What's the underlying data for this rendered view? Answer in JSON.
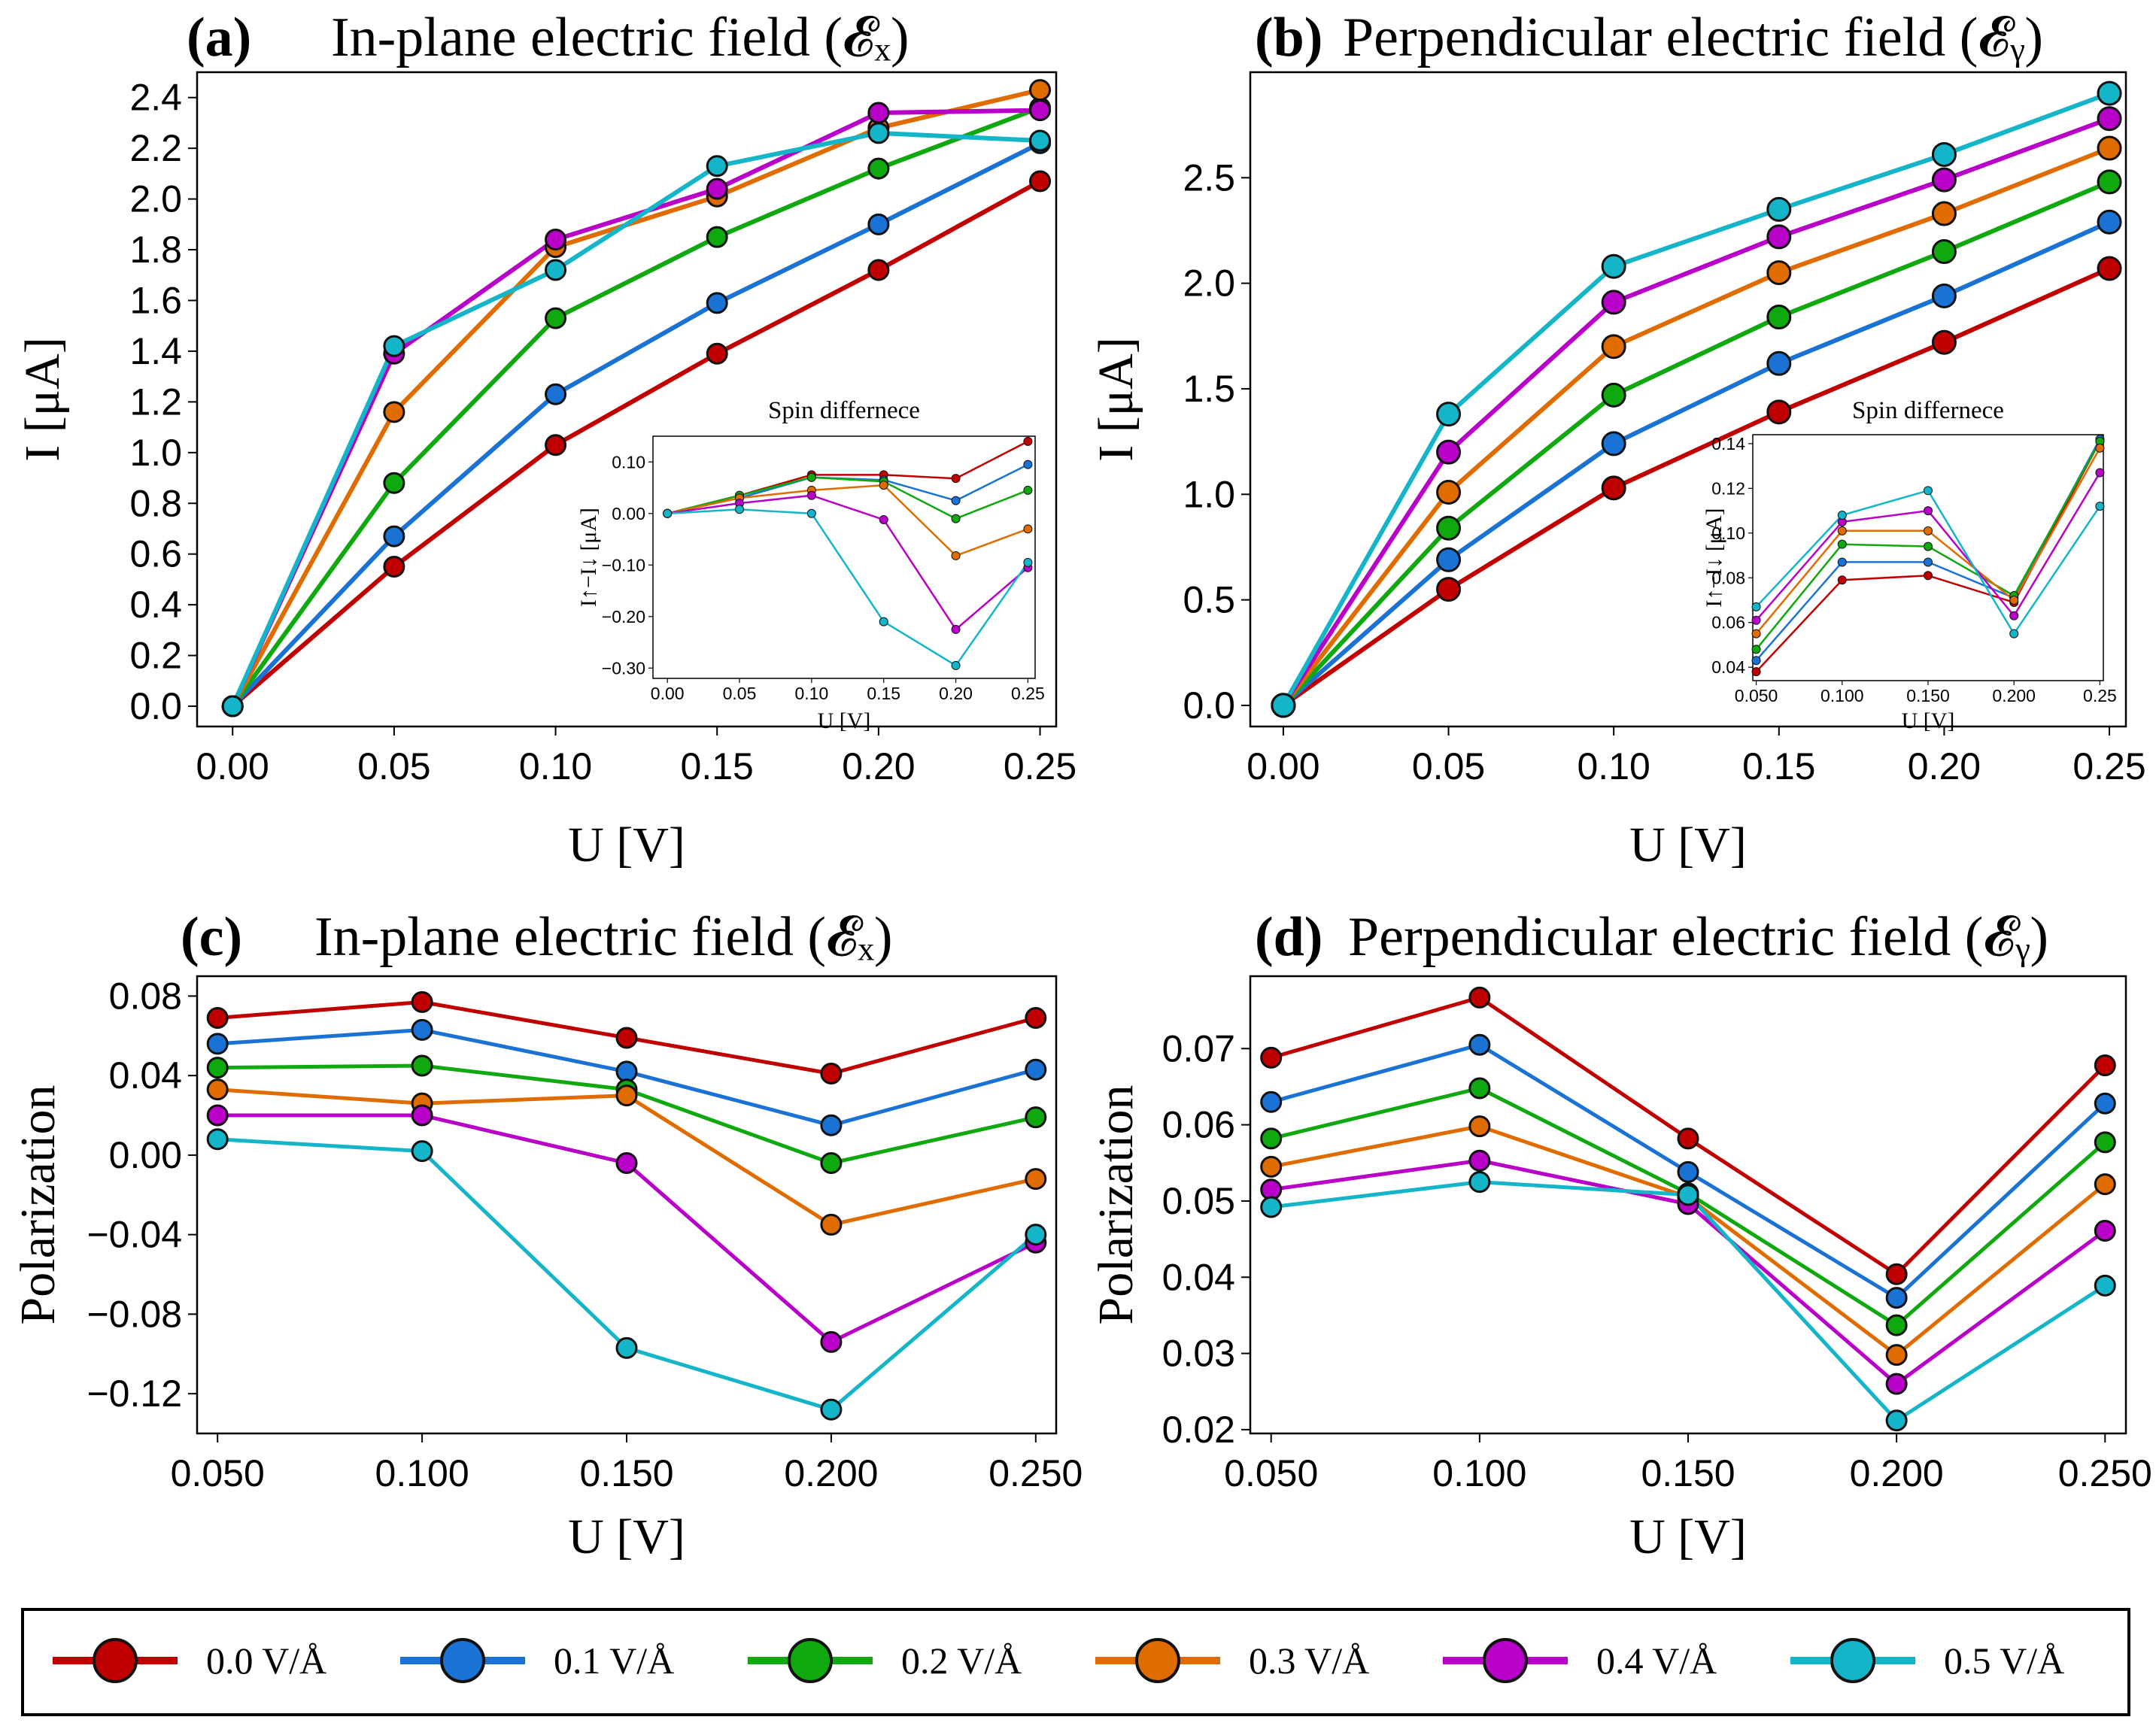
{
  "legend": {
    "entries": [
      {
        "label": "0.0 V/Å",
        "color": "#c00000"
      },
      {
        "label": "0.1 V/Å",
        "color": "#1a73d4"
      },
      {
        "label": "0.2 V/Å",
        "color": "#0fa80f"
      },
      {
        "label": "0.3 V/Å",
        "color": "#e06c00"
      },
      {
        "label": "0.4 V/Å",
        "color": "#b800c8"
      },
      {
        "label": "0.5 V/Å",
        "color": "#14b5c8"
      }
    ]
  },
  "chart_data": [
    {
      "id": "a",
      "type": "line",
      "panel_label": "(a)",
      "title": "In-plane electric field (𝓔ₓ)",
      "xlabel": "U [V]",
      "ylabel": "I [μA]",
      "xlim": [
        -0.011,
        0.255
      ],
      "ylim": [
        -0.08,
        2.5
      ],
      "xticks": [
        0.0,
        0.05,
        0.1,
        0.15,
        0.2,
        0.25
      ],
      "xtick_labels": [
        "0.00",
        "0.05",
        "0.10",
        "0.15",
        "0.20",
        "0.25"
      ],
      "yticks": [
        0.0,
        0.2,
        0.4,
        0.6,
        0.8,
        1.0,
        1.2,
        1.4,
        1.6,
        1.8,
        2.0,
        2.2,
        2.4
      ],
      "ytick_labels": [
        "0.0",
        "0.2",
        "0.4",
        "0.6",
        "0.8",
        "1.0",
        "1.2",
        "1.4",
        "1.6",
        "1.8",
        "2.0",
        "2.2",
        "2.4"
      ],
      "x": [
        0.0,
        0.05,
        0.1,
        0.15,
        0.2,
        0.25
      ],
      "series": [
        {
          "name": "0.0 V/Å",
          "values": [
            0.0,
            0.55,
            1.03,
            1.39,
            1.72,
            2.07
          ]
        },
        {
          "name": "0.1 V/Å",
          "values": [
            0.0,
            0.67,
            1.23,
            1.59,
            1.9,
            2.22
          ]
        },
        {
          "name": "0.2 V/Å",
          "values": [
            0.0,
            0.88,
            1.53,
            1.85,
            2.12,
            2.36
          ]
        },
        {
          "name": "0.3 V/Å",
          "values": [
            0.0,
            1.16,
            1.81,
            2.01,
            2.28,
            2.43
          ]
        },
        {
          "name": "0.4 V/Å",
          "values": [
            0.0,
            1.39,
            1.84,
            2.04,
            2.34,
            2.35
          ]
        },
        {
          "name": "0.5 V/Å",
          "values": [
            0.0,
            1.42,
            1.72,
            2.13,
            2.26,
            2.23
          ]
        }
      ],
      "inset": {
        "title": "Spin differnece",
        "xlabel": "U [V]",
        "ylabel": "I↑−I↓ [μA]",
        "xlim": [
          -0.01,
          0.255
        ],
        "ylim": [
          -0.32,
          0.15
        ],
        "xticks": [
          0.0,
          0.05,
          0.1,
          0.15,
          0.2,
          0.25
        ],
        "xtick_labels": [
          "0.00",
          "0.05",
          "0.10",
          "0.15",
          "0.20",
          "0.25"
        ],
        "yticks": [
          0.1,
          0.0,
          -0.1,
          -0.2,
          -0.3
        ],
        "ytick_labels": [
          "0.10",
          "0.00",
          "−0.10",
          "−0.20",
          "−0.30"
        ],
        "x": [
          0.0,
          0.05,
          0.1,
          0.15,
          0.2,
          0.25
        ],
        "series": [
          {
            "name": "0.0 V/Å",
            "values": [
              0.0,
              0.035,
              0.075,
              0.075,
              0.068,
              0.14
            ]
          },
          {
            "name": "0.1 V/Å",
            "values": [
              0.0,
              0.03,
              0.07,
              0.065,
              0.025,
              0.095
            ]
          },
          {
            "name": "0.2 V/Å",
            "values": [
              0.0,
              0.035,
              0.07,
              0.062,
              -0.01,
              0.045
            ]
          },
          {
            "name": "0.3 V/Å",
            "values": [
              0.0,
              0.03,
              0.045,
              0.055,
              -0.082,
              -0.03
            ]
          },
          {
            "name": "0.4 V/Å",
            "values": [
              0.0,
              0.02,
              0.035,
              -0.012,
              -0.225,
              -0.105
            ]
          },
          {
            "name": "0.5 V/Å",
            "values": [
              0.0,
              0.008,
              0.0,
              -0.21,
              -0.295,
              -0.095
            ]
          }
        ]
      }
    },
    {
      "id": "b",
      "type": "line",
      "panel_label": "(b)",
      "title": "Perpendicular electric field (𝓔ᵧ)",
      "xlabel": "U [V]",
      "ylabel": "I [μA]",
      "xlim": [
        -0.01,
        0.255
      ],
      "ylim": [
        -0.1,
        3.0
      ],
      "xticks": [
        0.0,
        0.05,
        0.1,
        0.15,
        0.2,
        0.25
      ],
      "xtick_labels": [
        "0.00",
        "0.05",
        "0.10",
        "0.15",
        "0.20",
        "0.25"
      ],
      "yticks": [
        0.0,
        0.5,
        1.0,
        1.5,
        2.0,
        2.5
      ],
      "ytick_labels": [
        "0.0",
        "0.5",
        "1.0",
        "1.5",
        "2.0",
        "2.5"
      ],
      "x": [
        0.0,
        0.05,
        0.1,
        0.15,
        0.2,
        0.25
      ],
      "series": [
        {
          "name": "0.0 V/Å",
          "values": [
            0.0,
            0.55,
            1.03,
            1.39,
            1.72,
            2.07
          ]
        },
        {
          "name": "0.1 V/Å",
          "values": [
            0.0,
            0.69,
            1.24,
            1.62,
            1.94,
            2.29
          ]
        },
        {
          "name": "0.2 V/Å",
          "values": [
            0.0,
            0.84,
            1.47,
            1.84,
            2.15,
            2.48
          ]
        },
        {
          "name": "0.3 V/Å",
          "values": [
            0.0,
            1.01,
            1.7,
            2.05,
            2.33,
            2.64
          ]
        },
        {
          "name": "0.4 V/Å",
          "values": [
            0.0,
            1.2,
            1.91,
            2.22,
            2.49,
            2.78
          ]
        },
        {
          "name": "0.5 V/Å",
          "values": [
            0.0,
            1.38,
            2.08,
            2.35,
            2.61,
            2.9
          ]
        }
      ],
      "inset": {
        "title": "Spin differnece",
        "xlabel": "U [V]",
        "ylabel": "I↑−I↓ [μA]",
        "xlim": [
          0.048,
          0.252
        ],
        "ylim": [
          0.034,
          0.144
        ],
        "xticks": [
          0.05,
          0.1,
          0.15,
          0.2,
          0.25
        ],
        "xtick_labels": [
          "0.050",
          "0.100",
          "0.150",
          "0.200",
          "0.25"
        ],
        "yticks": [
          0.04,
          0.06,
          0.08,
          0.1,
          0.12,
          0.14
        ],
        "ytick_labels": [
          "0.04",
          "0.06",
          "0.08",
          "0.10",
          "0.12",
          "0.14"
        ],
        "x": [
          0.05,
          0.1,
          0.15,
          0.2,
          0.25
        ],
        "series": [
          {
            "name": "0.0 V/Å",
            "values": [
              0.038,
              0.079,
              0.081,
              0.069,
              0.141
            ]
          },
          {
            "name": "0.1 V/Å",
            "values": [
              0.043,
              0.087,
              0.087,
              0.071,
              0.142
            ]
          },
          {
            "name": "0.2 V/Å",
            "values": [
              0.048,
              0.095,
              0.094,
              0.072,
              0.141
            ]
          },
          {
            "name": "0.3 V/Å",
            "values": [
              0.055,
              0.101,
              0.101,
              0.07,
              0.138
            ]
          },
          {
            "name": "0.4 V/Å",
            "values": [
              0.061,
              0.105,
              0.11,
              0.063,
              0.127
            ]
          },
          {
            "name": "0.5 V/Å",
            "values": [
              0.067,
              0.108,
              0.119,
              0.055,
              0.112
            ]
          }
        ]
      }
    },
    {
      "id": "c",
      "type": "line",
      "panel_label": "(c)",
      "title": "In-plane electric field (𝓔ₓ)",
      "xlabel": "U [V]",
      "ylabel": "Polarization",
      "xlim": [
        0.045,
        0.255
      ],
      "ylim": [
        -0.14,
        0.09
      ],
      "xticks": [
        0.05,
        0.1,
        0.15,
        0.2,
        0.25
      ],
      "xtick_labels": [
        "0.050",
        "0.100",
        "0.150",
        "0.200",
        "0.250"
      ],
      "yticks": [
        0.08,
        0.04,
        0.0,
        -0.04,
        -0.08,
        -0.12
      ],
      "ytick_labels": [
        "0.08",
        "0.04",
        "0.00",
        "−0.04",
        "−0.08",
        "−0.12"
      ],
      "x": [
        0.05,
        0.1,
        0.15,
        0.2,
        0.25
      ],
      "series": [
        {
          "name": "0.0 V/Å",
          "values": [
            0.069,
            0.077,
            0.059,
            0.041,
            0.069
          ]
        },
        {
          "name": "0.1 V/Å",
          "values": [
            0.056,
            0.063,
            0.042,
            0.015,
            0.043
          ]
        },
        {
          "name": "0.2 V/Å",
          "values": [
            0.044,
            0.045,
            0.033,
            -0.004,
            0.019
          ]
        },
        {
          "name": "0.3 V/Å",
          "values": [
            0.033,
            0.026,
            0.03,
            -0.035,
            -0.012
          ]
        },
        {
          "name": "0.4 V/Å",
          "values": [
            0.02,
            0.02,
            -0.004,
            -0.094,
            -0.044
          ]
        },
        {
          "name": "0.5 V/Å",
          "values": [
            0.008,
            0.002,
            -0.097,
            -0.128,
            -0.04
          ]
        }
      ]
    },
    {
      "id": "d",
      "type": "line",
      "panel_label": "(d)",
      "title": "Perpendicular electric field (𝓔ᵧ)",
      "xlabel": "U [V]",
      "ylabel": "Polarization",
      "xlim": [
        0.045,
        0.255
      ],
      "ylim": [
        0.0195,
        0.0795
      ],
      "xticks": [
        0.05,
        0.1,
        0.15,
        0.2,
        0.25
      ],
      "xtick_labels": [
        "0.050",
        "0.100",
        "0.150",
        "0.200",
        "0.250"
      ],
      "yticks": [
        0.07,
        0.06,
        0.05,
        0.04,
        0.03,
        0.02
      ],
      "ytick_labels": [
        "0.07",
        "0.06",
        "0.05",
        "0.04",
        "0.03",
        "0.02"
      ],
      "x": [
        0.05,
        0.1,
        0.15,
        0.2,
        0.25
      ],
      "series": [
        {
          "name": "0.0 V/Å",
          "values": [
            0.0688,
            0.0767,
            0.0582,
            0.0404,
            0.0678
          ]
        },
        {
          "name": "0.1 V/Å",
          "values": [
            0.063,
            0.0705,
            0.0538,
            0.0373,
            0.0628
          ]
        },
        {
          "name": "0.2 V/Å",
          "values": [
            0.0582,
            0.0648,
            0.051,
            0.0337,
            0.0577
          ]
        },
        {
          "name": "0.3 V/Å",
          "values": [
            0.0545,
            0.0598,
            0.0505,
            0.0298,
            0.0522
          ]
        },
        {
          "name": "0.4 V/Å",
          "values": [
            0.0515,
            0.0553,
            0.0496,
            0.026,
            0.0461
          ]
        },
        {
          "name": "0.5 V/Å",
          "values": [
            0.0492,
            0.0525,
            0.0508,
            0.0212,
            0.0389
          ]
        }
      ]
    }
  ]
}
